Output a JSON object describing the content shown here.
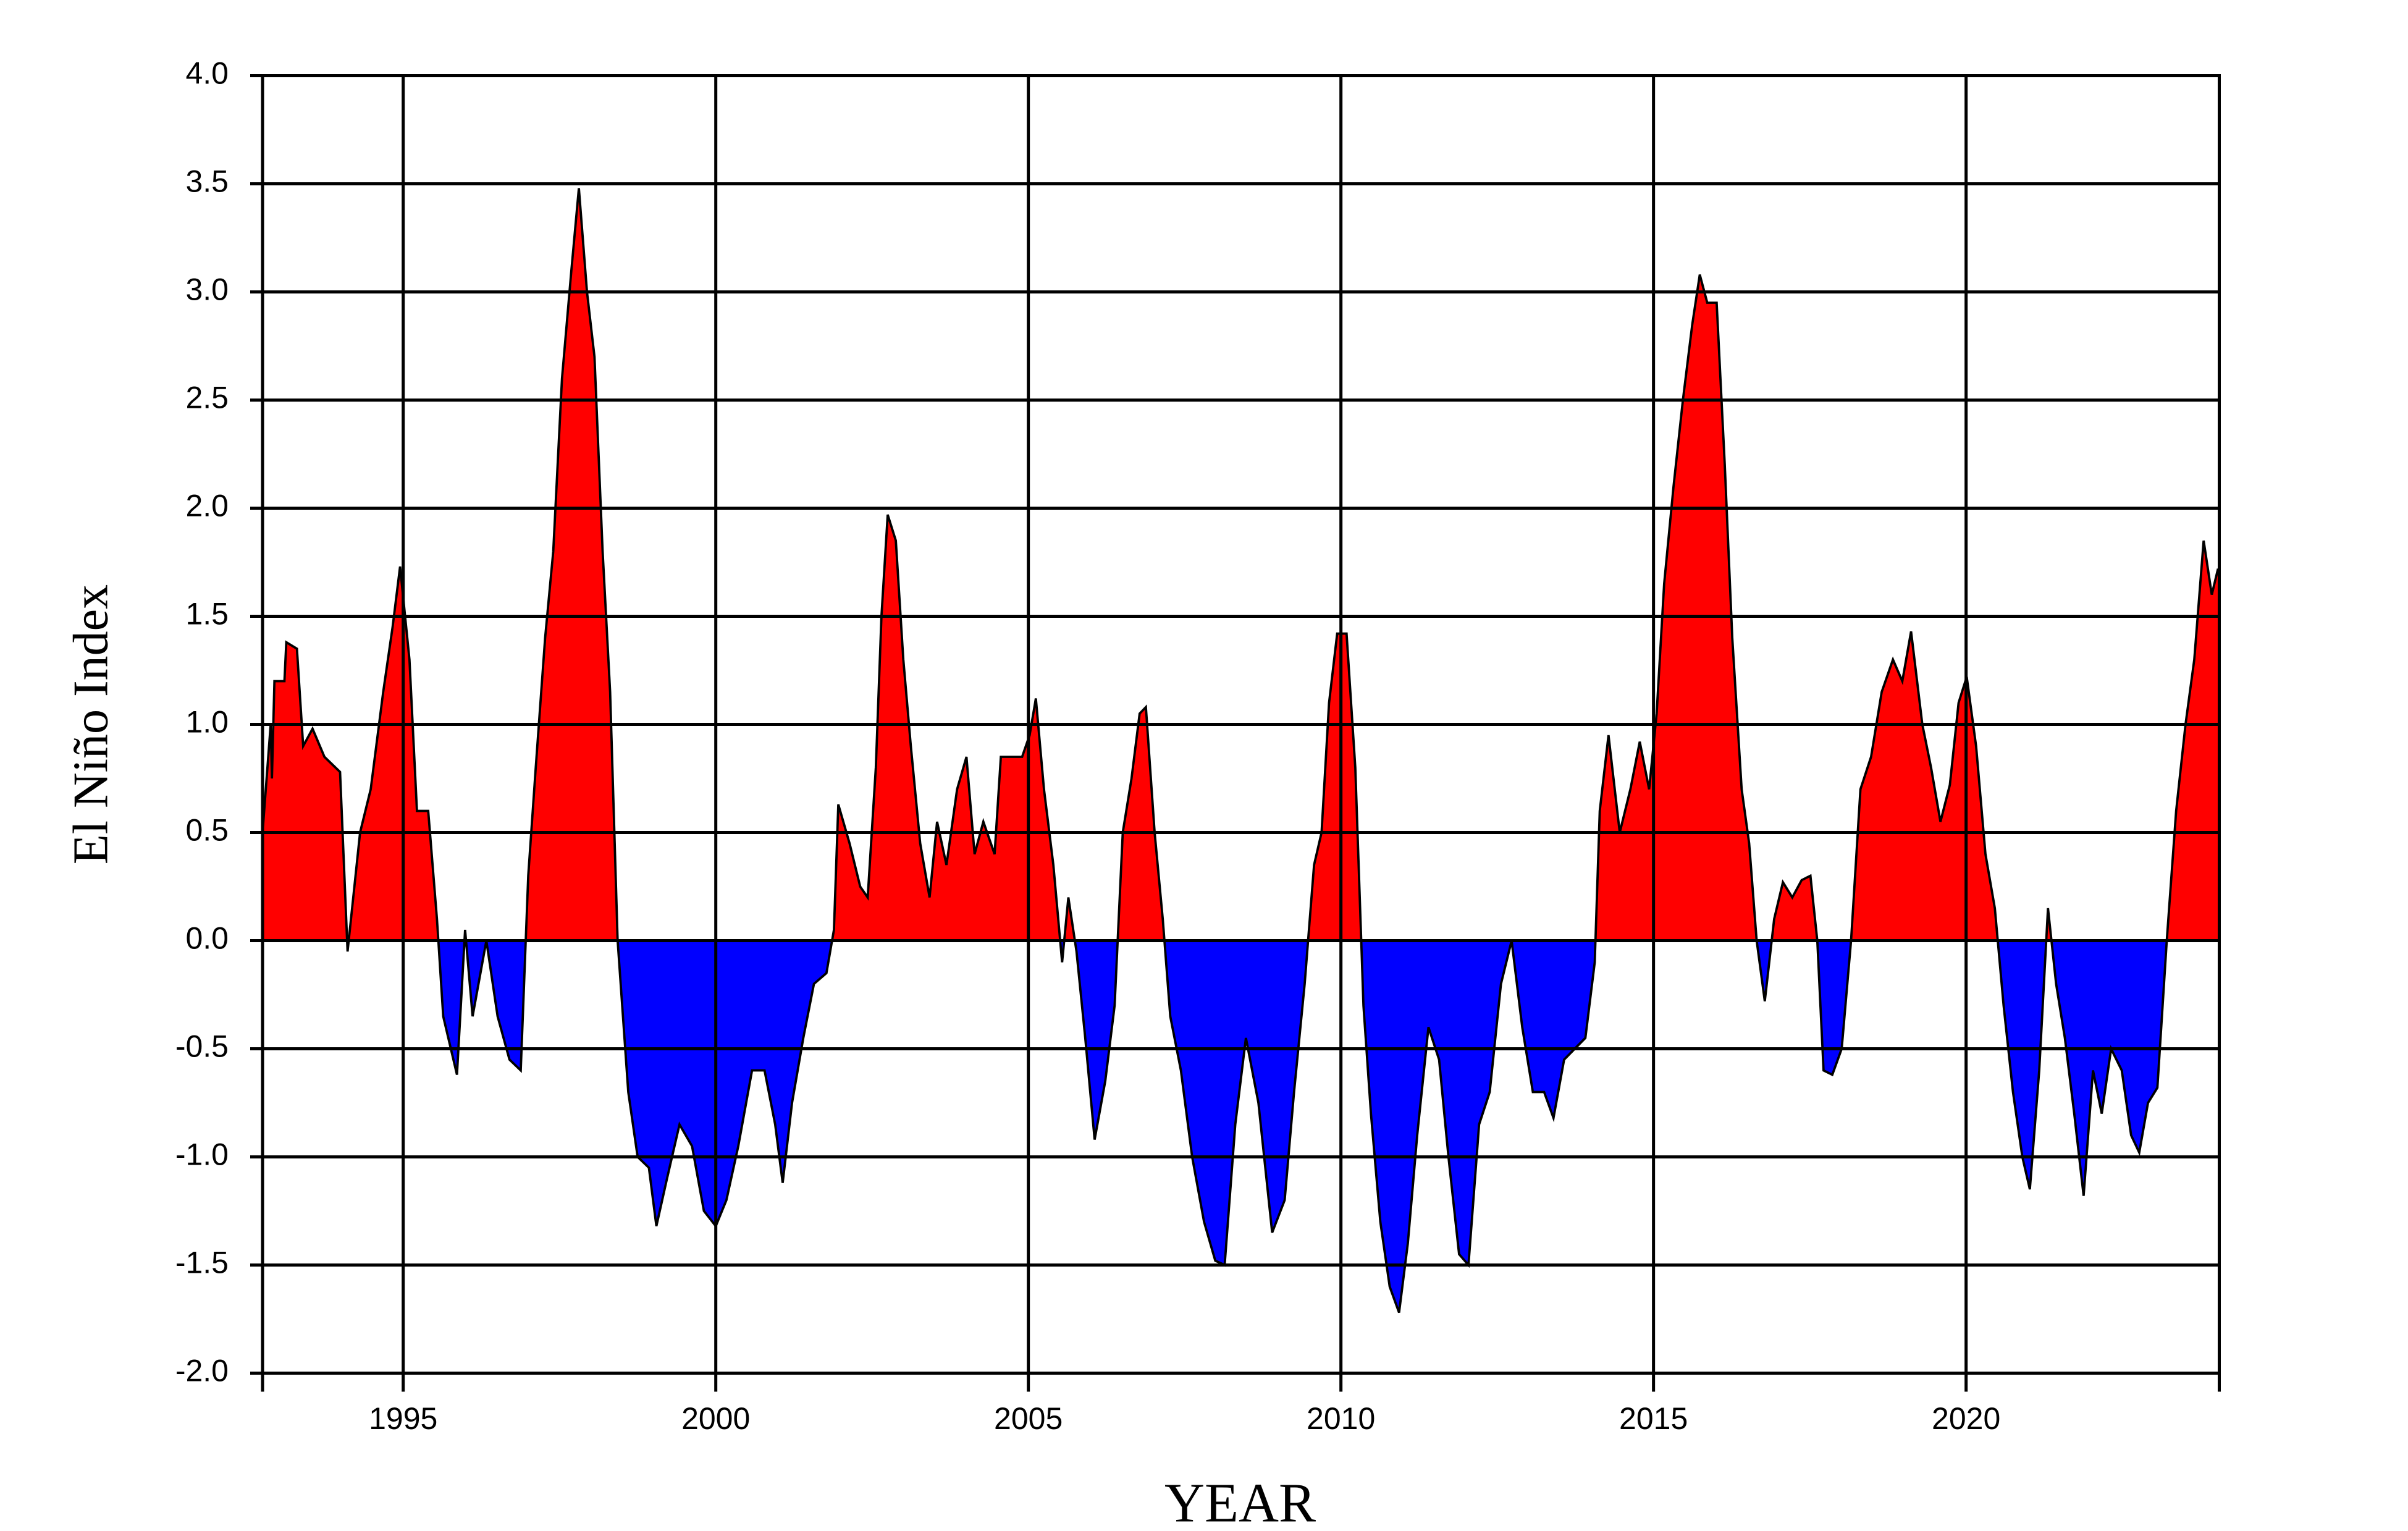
{
  "chart_data": {
    "type": "area",
    "x_label": "YEAR",
    "y_label": "El Niño Index",
    "xlim": [
      1992.75,
      2024.05
    ],
    "xticks": [
      1995,
      2000,
      2005,
      2010,
      2015,
      2020
    ],
    "ylim": [
      -2,
      4
    ],
    "yticks": [
      {
        "value": -2,
        "label": "-2.0"
      },
      {
        "value": -1.5,
        "label": "-1.5"
      },
      {
        "value": -1,
        "label": "-1.0"
      },
      {
        "value": -0.5,
        "label": "-0.5"
      },
      {
        "value": 0,
        "label": "0.0"
      },
      {
        "value": 0.5,
        "label": "0.5"
      },
      {
        "value": 1,
        "label": "1.0"
      },
      {
        "value": 1.5,
        "label": "1.5"
      },
      {
        "value": 2,
        "label": "2.0"
      },
      {
        "value": 2.5,
        "label": "2.5"
      },
      {
        "value": 3,
        "label": "3.0"
      },
      {
        "value": 3.5,
        "label": "3.5"
      },
      {
        "value": 4,
        "label": "4.0"
      }
    ],
    "grid": true,
    "positive_color": "#ff0000",
    "negative_color": "#0000ff",
    "line_color": "#000000",
    "x": [
      1992.75,
      1992.88,
      1992.9,
      1992.94,
      1993.1,
      1993.13,
      1993.3,
      1993.4,
      1993.55,
      1993.74,
      1993.99,
      1994.11,
      1994.31,
      1994.48,
      1994.68,
      1994.83,
      1994.95,
      1995.1,
      1995.22,
      1995.4,
      1995.54,
      1995.64,
      1995.86,
      1995.99,
      1996.11,
      1996.33,
      1996.51,
      1996.7,
      1996.88,
      1997.0,
      1997.12,
      1997.27,
      1997.4,
      1997.54,
      1997.69,
      1997.81,
      1997.94,
      1998.06,
      1998.19,
      1998.31,
      1998.43,
      1998.6,
      1998.75,
      1998.93,
      1999.05,
      1999.22,
      1999.42,
      1999.62,
      1999.81,
      2000.0,
      2000.17,
      2000.36,
      2000.58,
      2000.78,
      2000.95,
      2001.07,
      2001.22,
      2001.4,
      2001.57,
      2001.77,
      2001.89,
      2001.96,
      2002.14,
      2002.31,
      2002.43,
      2002.56,
      2002.65,
      2002.75,
      2002.88,
      2003.0,
      2003.12,
      2003.27,
      2003.42,
      2003.54,
      2003.69,
      2003.86,
      2004.01,
      2004.14,
      2004.28,
      2004.46,
      2004.56,
      2004.73,
      2004.9,
      2005.02,
      2005.12,
      2005.25,
      2005.4,
      2005.54,
      2005.64,
      2005.77,
      2005.91,
      2006.06,
      2006.23,
      2006.38,
      2006.51,
      2006.65,
      2006.78,
      2006.88,
      2007.02,
      2007.15,
      2007.27,
      2007.44,
      2007.62,
      2007.81,
      2007.99,
      2008.14,
      2008.31,
      2008.48,
      2008.68,
      2008.9,
      2009.1,
      2009.25,
      2009.42,
      2009.57,
      2009.69,
      2009.81,
      2009.94,
      2010.09,
      2010.23,
      2010.36,
      2010.48,
      2010.63,
      2010.78,
      2010.93,
      2011.07,
      2011.22,
      2011.4,
      2011.57,
      2011.72,
      2011.89,
      2012.04,
      2012.21,
      2012.38,
      2012.56,
      2012.73,
      2012.9,
      2013.07,
      2013.25,
      2013.4,
      2013.57,
      2013.74,
      2013.91,
      2014.06,
      2014.14,
      2014.28,
      2014.46,
      2014.63,
      2014.78,
      2014.93,
      2015.05,
      2015.17,
      2015.32,
      2015.47,
      2015.62,
      2015.74,
      2015.86,
      2016.01,
      2016.14,
      2016.26,
      2016.41,
      2016.53,
      2016.65,
      2016.78,
      2016.93,
      2017.07,
      2017.22,
      2017.37,
      2017.51,
      2017.62,
      2017.72,
      2017.86,
      2018.01,
      2018.16,
      2018.31,
      2018.48,
      2018.65,
      2018.83,
      2018.98,
      2019.12,
      2019.3,
      2019.44,
      2019.59,
      2019.74,
      2019.88,
      2020.01,
      2020.16,
      2020.31,
      2020.46,
      2020.6,
      2020.75,
      2020.9,
      2021.02,
      2021.17,
      2021.31,
      2021.44,
      2021.58,
      2021.73,
      2021.88,
      2022.03,
      2022.17,
      2022.32,
      2022.49,
      2022.64,
      2022.77,
      2022.91,
      2023.06,
      2023.21,
      2023.36,
      2023.51,
      2023.65,
      2023.8,
      2023.93,
      2024.03
    ],
    "values": [
      0.5,
      1.0,
      0.75,
      1.2,
      1.2,
      1.38,
      1.35,
      0.9,
      0.98,
      0.85,
      0.78,
      -0.05,
      0.5,
      0.7,
      1.15,
      1.45,
      1.73,
      1.3,
      0.6,
      0.6,
      0.1,
      -0.35,
      -0.62,
      0.05,
      -0.35,
      0.0,
      -0.35,
      -0.55,
      -0.6,
      0.3,
      0.8,
      1.4,
      1.8,
      2.6,
      3.1,
      3.48,
      3.0,
      2.7,
      1.8,
      1.15,
      0.0,
      -0.7,
      -1.0,
      -1.05,
      -1.32,
      -1.1,
      -0.85,
      -0.95,
      -1.25,
      -1.32,
      -1.2,
      -0.95,
      -0.6,
      -0.6,
      -0.85,
      -1.12,
      -0.75,
      -0.45,
      -0.2,
      -0.15,
      0.05,
      0.63,
      0.45,
      0.25,
      0.2,
      0.8,
      1.5,
      1.97,
      1.85,
      1.3,
      0.9,
      0.45,
      0.2,
      0.55,
      0.35,
      0.7,
      0.85,
      0.4,
      0.55,
      0.4,
      0.85,
      0.85,
      0.85,
      0.95,
      1.12,
      0.7,
      0.35,
      -0.1,
      0.2,
      -0.05,
      -0.45,
      -0.92,
      -0.65,
      -0.3,
      0.5,
      0.75,
      1.05,
      1.08,
      0.5,
      0.1,
      -0.35,
      -0.6,
      -1.0,
      -1.3,
      -1.48,
      -1.5,
      -0.85,
      -0.45,
      -0.75,
      -1.35,
      -1.2,
      -0.7,
      -0.2,
      0.35,
      0.5,
      1.1,
      1.42,
      1.42,
      0.8,
      -0.3,
      -0.8,
      -1.3,
      -1.6,
      -1.72,
      -1.4,
      -0.9,
      -0.4,
      -0.55,
      -1.0,
      -1.45,
      -1.5,
      -0.85,
      -0.7,
      -0.2,
      0.0,
      -0.4,
      -0.7,
      -0.7,
      -0.82,
      -0.55,
      -0.5,
      -0.45,
      -0.1,
      0.6,
      0.95,
      0.5,
      0.7,
      0.92,
      0.7,
      1.05,
      1.65,
      2.1,
      2.5,
      2.85,
      3.08,
      2.95,
      2.95,
      2.2,
      1.4,
      0.7,
      0.45,
      0.0,
      -0.28,
      0.1,
      0.27,
      0.2,
      0.28,
      0.3,
      0.0,
      -0.6,
      -0.62,
      -0.5,
      0.0,
      0.7,
      0.85,
      1.15,
      1.3,
      1.2,
      1.43,
      1.0,
      0.8,
      0.55,
      0.72,
      1.1,
      1.22,
      0.9,
      0.4,
      0.15,
      -0.3,
      -0.7,
      -1.0,
      -1.15,
      -0.6,
      0.15,
      -0.2,
      -0.45,
      -0.8,
      -1.18,
      -0.6,
      -0.8,
      -0.5,
      -0.6,
      -0.9,
      -0.98,
      -0.75,
      -0.68,
      0.0,
      0.6,
      1.0,
      1.3,
      1.85,
      1.6,
      1.72
    ]
  }
}
